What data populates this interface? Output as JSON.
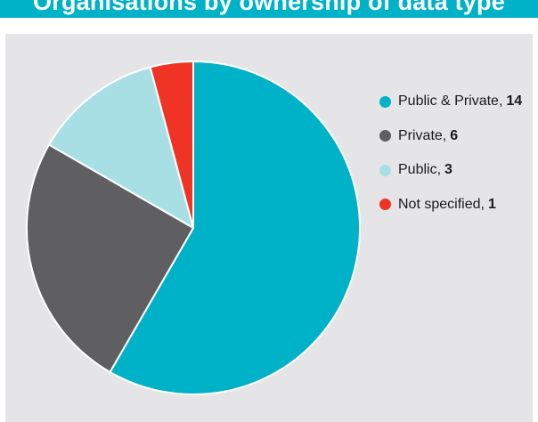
{
  "header": {
    "title": "Organisations by ownership of data type"
  },
  "chart_data": {
    "type": "pie",
    "title": "Organisations by ownership of data type",
    "series": [
      {
        "name": "Public & Private",
        "value": 14,
        "color": "#00b2c8"
      },
      {
        "name": "Private",
        "value": 6,
        "color": "#5f5f61"
      },
      {
        "name": "Public",
        "value": 3,
        "color": "#a8dfe5"
      },
      {
        "name": "Not specified",
        "value": 1,
        "color": "#ef3426"
      }
    ],
    "legend_position": "top-right"
  }
}
